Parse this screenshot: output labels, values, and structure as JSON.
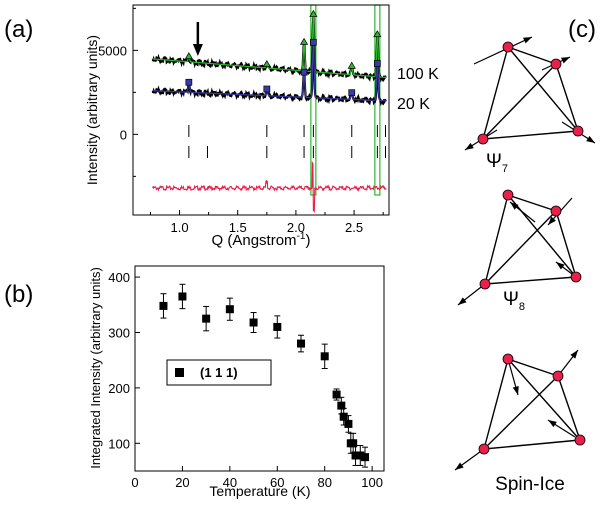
{
  "panel_labels": {
    "a": "(a)",
    "b": "(b)",
    "c": "(c)"
  },
  "chart_data": [
    {
      "type": "line",
      "xlabel": "Q (Angstrom",
      "xlabel_sup": "-1",
      "xlabel_end": ")",
      "ylabel": "Intensity (arbitrary units)",
      "xlim": [
        0.6,
        2.8
      ],
      "ylim": [
        -4800,
        7700
      ],
      "x_ticks": [
        1.0,
        1.5,
        2.0,
        2.5
      ],
      "x_tick_labels": [
        "1.0",
        "1.5",
        "2.0",
        "2.5"
      ],
      "y_ticks": [
        0,
        5000
      ],
      "y_tick_labels": [
        "0",
        "5000"
      ],
      "series": [
        {
          "name": "100 K",
          "baseline": 4500,
          "slope": -550,
          "peaks": [
            [
              1.08,
              300
            ],
            [
              1.75,
              200
            ],
            [
              2.07,
              1700
            ],
            [
              2.15,
              3400
            ],
            [
              2.48,
              500
            ],
            [
              2.7,
              2500
            ]
          ],
          "color": "#000000",
          "fit_color": "#2db82d"
        },
        {
          "name": "20 K",
          "baseline": 2600,
          "slope": -300,
          "peaks": [
            [
              1.08,
              600
            ],
            [
              1.75,
              400
            ],
            [
              2.07,
              1500
            ],
            [
              2.15,
              3300
            ],
            [
              2.48,
              400
            ],
            [
              2.7,
              2200
            ]
          ],
          "color": "#000000",
          "fit_color": "#3a3aa8"
        }
      ],
      "difference_baseline": -3200,
      "difference_color": "#e8204a",
      "reflection_ticks_row1": [
        1.08,
        1.75,
        2.07,
        2.15,
        2.48,
        2.7,
        2.77
      ],
      "reflection_ticks_row2": [
        1.08,
        1.24,
        1.75,
        2.07,
        2.15,
        2.48,
        2.7,
        2.77
      ],
      "highlight_q": [
        2.15,
        2.7
      ],
      "arrow_q": 1.08
    },
    {
      "type": "scatter",
      "xlabel": "Temperature (K)",
      "ylabel": "Integrated Intensity (arbitrary units)",
      "xlim": [
        0,
        105
      ],
      "ylim": [
        50,
        420
      ],
      "x_ticks": [
        0,
        20,
        40,
        60,
        80,
        100
      ],
      "y_ticks": [
        100,
        200,
        300,
        400
      ],
      "legend": "(1 1 1)",
      "legend_position": "center-left",
      "points": [
        [
          12,
          348,
          22
        ],
        [
          20,
          365,
          22
        ],
        [
          30,
          325,
          22
        ],
        [
          40,
          342,
          20
        ],
        [
          50,
          318,
          18
        ],
        [
          60,
          310,
          20
        ],
        [
          70,
          280,
          15
        ],
        [
          80,
          257,
          22
        ],
        [
          85,
          188,
          10
        ],
        [
          87,
          168,
          15
        ],
        [
          88,
          148,
          15
        ],
        [
          90,
          135,
          15
        ],
        [
          91,
          100,
          18
        ],
        [
          92,
          100,
          18
        ],
        [
          93,
          78,
          18
        ],
        [
          95,
          78,
          18
        ],
        [
          97,
          75,
          18
        ]
      ]
    }
  ],
  "diagrams": [
    {
      "label": "Ψ",
      "subscript": "7"
    },
    {
      "label": "Ψ",
      "subscript": "8"
    },
    {
      "label": "Spin-Ice",
      "subscript": ""
    }
  ],
  "colors": {
    "atom": "#e8204a",
    "ink": "#000000"
  }
}
